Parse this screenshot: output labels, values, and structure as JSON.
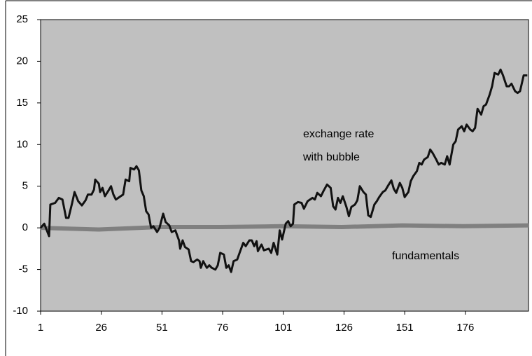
{
  "chart_data": {
    "type": "line",
    "xlim": [
      1,
      202
    ],
    "xticks": [
      1,
      26,
      51,
      76,
      101,
      126,
      151,
      176
    ],
    "ylim": [
      -10,
      25
    ],
    "yticks": [
      -10,
      -5,
      0,
      5,
      10,
      15,
      20,
      25
    ],
    "background": "#c0c0c0",
    "annotations": [
      "exchange rate",
      "with bubble",
      "fundamentals"
    ],
    "series": [
      {
        "name": "exchange rate with bubble",
        "color": "#111111",
        "x": [
          1,
          2.5,
          4.5,
          5,
          7,
          8.5,
          10,
          11.5,
          12.5,
          14,
          15,
          16.5,
          18,
          19.5,
          20.5,
          22,
          23,
          23.5,
          25,
          25.5,
          26.5,
          27.5,
          29,
          30,
          31,
          32,
          34,
          35,
          36,
          37.5,
          38,
          39.5,
          40.5,
          41.5,
          42.5,
          43.5,
          44.5,
          45.5,
          46.5,
          47.5,
          49,
          50,
          51.5,
          52.5,
          54,
          55,
          56.5,
          58,
          58.5,
          59.5,
          60.5,
          62,
          63,
          64,
          65.5,
          66.5,
          67,
          68,
          69.5,
          70.5,
          71.5,
          73,
          74,
          75,
          76.5,
          77.5,
          78.5,
          79.5,
          80.5,
          82,
          83,
          84.5,
          85.5,
          87,
          88,
          89,
          90,
          90.5,
          92,
          93,
          95,
          96,
          97,
          98.5,
          99.5,
          100.5,
          102,
          103,
          104,
          105,
          105.5,
          107,
          108.5,
          109.5,
          111,
          113,
          114,
          115,
          116.5,
          117.5,
          119,
          120.5,
          121.5,
          122.5,
          123.5,
          124.5,
          125.5,
          127,
          128,
          129,
          130.5,
          131.5,
          132.5,
          134,
          135,
          136,
          137,
          138.5,
          139.5,
          140.5,
          142,
          143,
          144,
          145.5,
          146.5,
          147.5,
          149,
          150,
          151,
          152.5,
          153.5,
          154.5,
          156,
          157,
          158,
          159,
          160.5,
          161.5,
          162.5,
          164,
          165,
          166,
          167.5,
          168.5,
          169.5,
          171,
          172,
          173,
          174.5,
          175.5,
          176.5,
          178,
          179,
          180,
          181,
          182.5,
          183.5,
          184.5,
          186,
          187,
          188,
          189.5,
          190.5,
          191.5,
          193,
          194,
          195,
          196.5,
          197.5,
          198.5,
          200,
          201.5
        ],
        "values": [
          0,
          0.5,
          -1,
          2.8,
          3,
          3.6,
          3.4,
          1.2,
          1.2,
          3,
          4.3,
          3.2,
          2.7,
          3.3,
          4,
          4,
          4.6,
          5.8,
          5.3,
          4.3,
          4.8,
          3.8,
          4.5,
          5,
          4,
          3.4,
          3.8,
          4,
          5.8,
          5.6,
          7.2,
          7,
          7.4,
          6.9,
          4.5,
          3.8,
          2,
          1.6,
          0,
          0.2,
          -0.5,
          0,
          1.7,
          0.7,
          0.3,
          -0.5,
          -0.3,
          -1.5,
          -2.5,
          -1.5,
          -2.3,
          -2.6,
          -4,
          -4.1,
          -3.8,
          -4,
          -4.8,
          -4,
          -4.8,
          -4.5,
          -4.8,
          -5,
          -4.5,
          -3,
          -3.2,
          -4.8,
          -4.5,
          -5.3,
          -4,
          -3.8,
          -3,
          -1.8,
          -2.2,
          -1.5,
          -1.5,
          -2.2,
          -1.6,
          -2.8,
          -2,
          -2.7,
          -2.5,
          -3,
          -1.8,
          -3.2,
          -0.3,
          -1.4,
          0.5,
          0.8,
          0.2,
          0.5,
          2.8,
          3.1,
          3,
          2.3,
          3.2,
          3.6,
          3.4,
          4.2,
          3.8,
          4.4,
          5.2,
          4.8,
          2.6,
          2.2,
          3.6,
          3,
          3.8,
          2.5,
          1.4,
          2.5,
          2.8,
          3.3,
          5,
          4.3,
          4,
          1.5,
          1.3,
          2.8,
          3.2,
          3.7,
          4.3,
          4.5,
          5,
          5.7,
          4.7,
          4.2,
          5.4,
          4.8,
          3.7,
          4.3,
          5.6,
          6.2,
          6.8,
          7.8,
          7.6,
          8.2,
          8.5,
          9.4,
          9,
          8.2,
          7.6,
          7.8,
          7.6,
          8.6,
          7.6,
          10,
          10.4,
          11.8,
          12.2,
          11.6,
          12.4,
          11.8,
          11.6,
          12,
          14.3,
          13.6,
          14.6,
          14.8,
          16,
          17,
          18.6,
          18.4,
          19,
          18.3,
          17,
          17,
          17.3,
          16.4,
          16.2,
          16.4,
          18.3,
          18.3
        ]
      },
      {
        "name": "fundamentals",
        "color": "#808080",
        "x": [
          1,
          25,
          50,
          75,
          100,
          125,
          150,
          175,
          202
        ],
        "values": [
          0,
          -0.2,
          0.1,
          0.1,
          0.2,
          0.1,
          0.3,
          0.2,
          0.3
        ]
      }
    ]
  }
}
